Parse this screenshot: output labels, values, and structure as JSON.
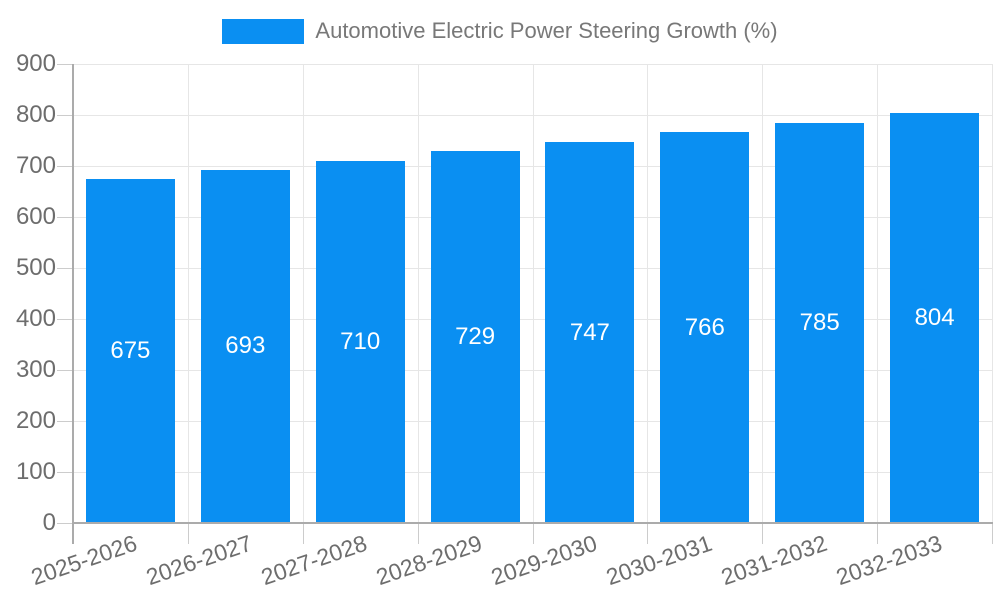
{
  "legend": {
    "position": "top"
  },
  "chart_data": {
    "type": "bar",
    "title": "Automotive Electric Power Steering Growth (%)",
    "categories": [
      "2025-2026",
      "2026-2027",
      "2027-2028",
      "2028-2029",
      "2029-2030",
      "2030-2031",
      "2031-2032",
      "2032-2033"
    ],
    "series": [
      {
        "name": "Automotive Electric Power Steering Growth (%)",
        "values": [
          675,
          693,
          710,
          729,
          747,
          766,
          785,
          804
        ],
        "color": "#0a8ff2"
      }
    ],
    "value_labels": [
      "675",
      "693",
      "710",
      "729",
      "747",
      "766",
      "785",
      "804"
    ],
    "xlabel": "",
    "ylabel": "",
    "ylim": [
      0,
      900
    ],
    "yticks": [
      0,
      100,
      200,
      300,
      400,
      500,
      600,
      700,
      800,
      900
    ],
    "grid": true,
    "legend_position": "top",
    "colors": {
      "bar": "#0a8ff2",
      "value_label_text": "#ffffff",
      "axis_text": "#6d6d6d",
      "legend_text": "#787878",
      "grid_line": "#e6e6e6",
      "axis_line": "#ababab",
      "tick_line": "#cccccc",
      "background": "#ffffff"
    }
  }
}
